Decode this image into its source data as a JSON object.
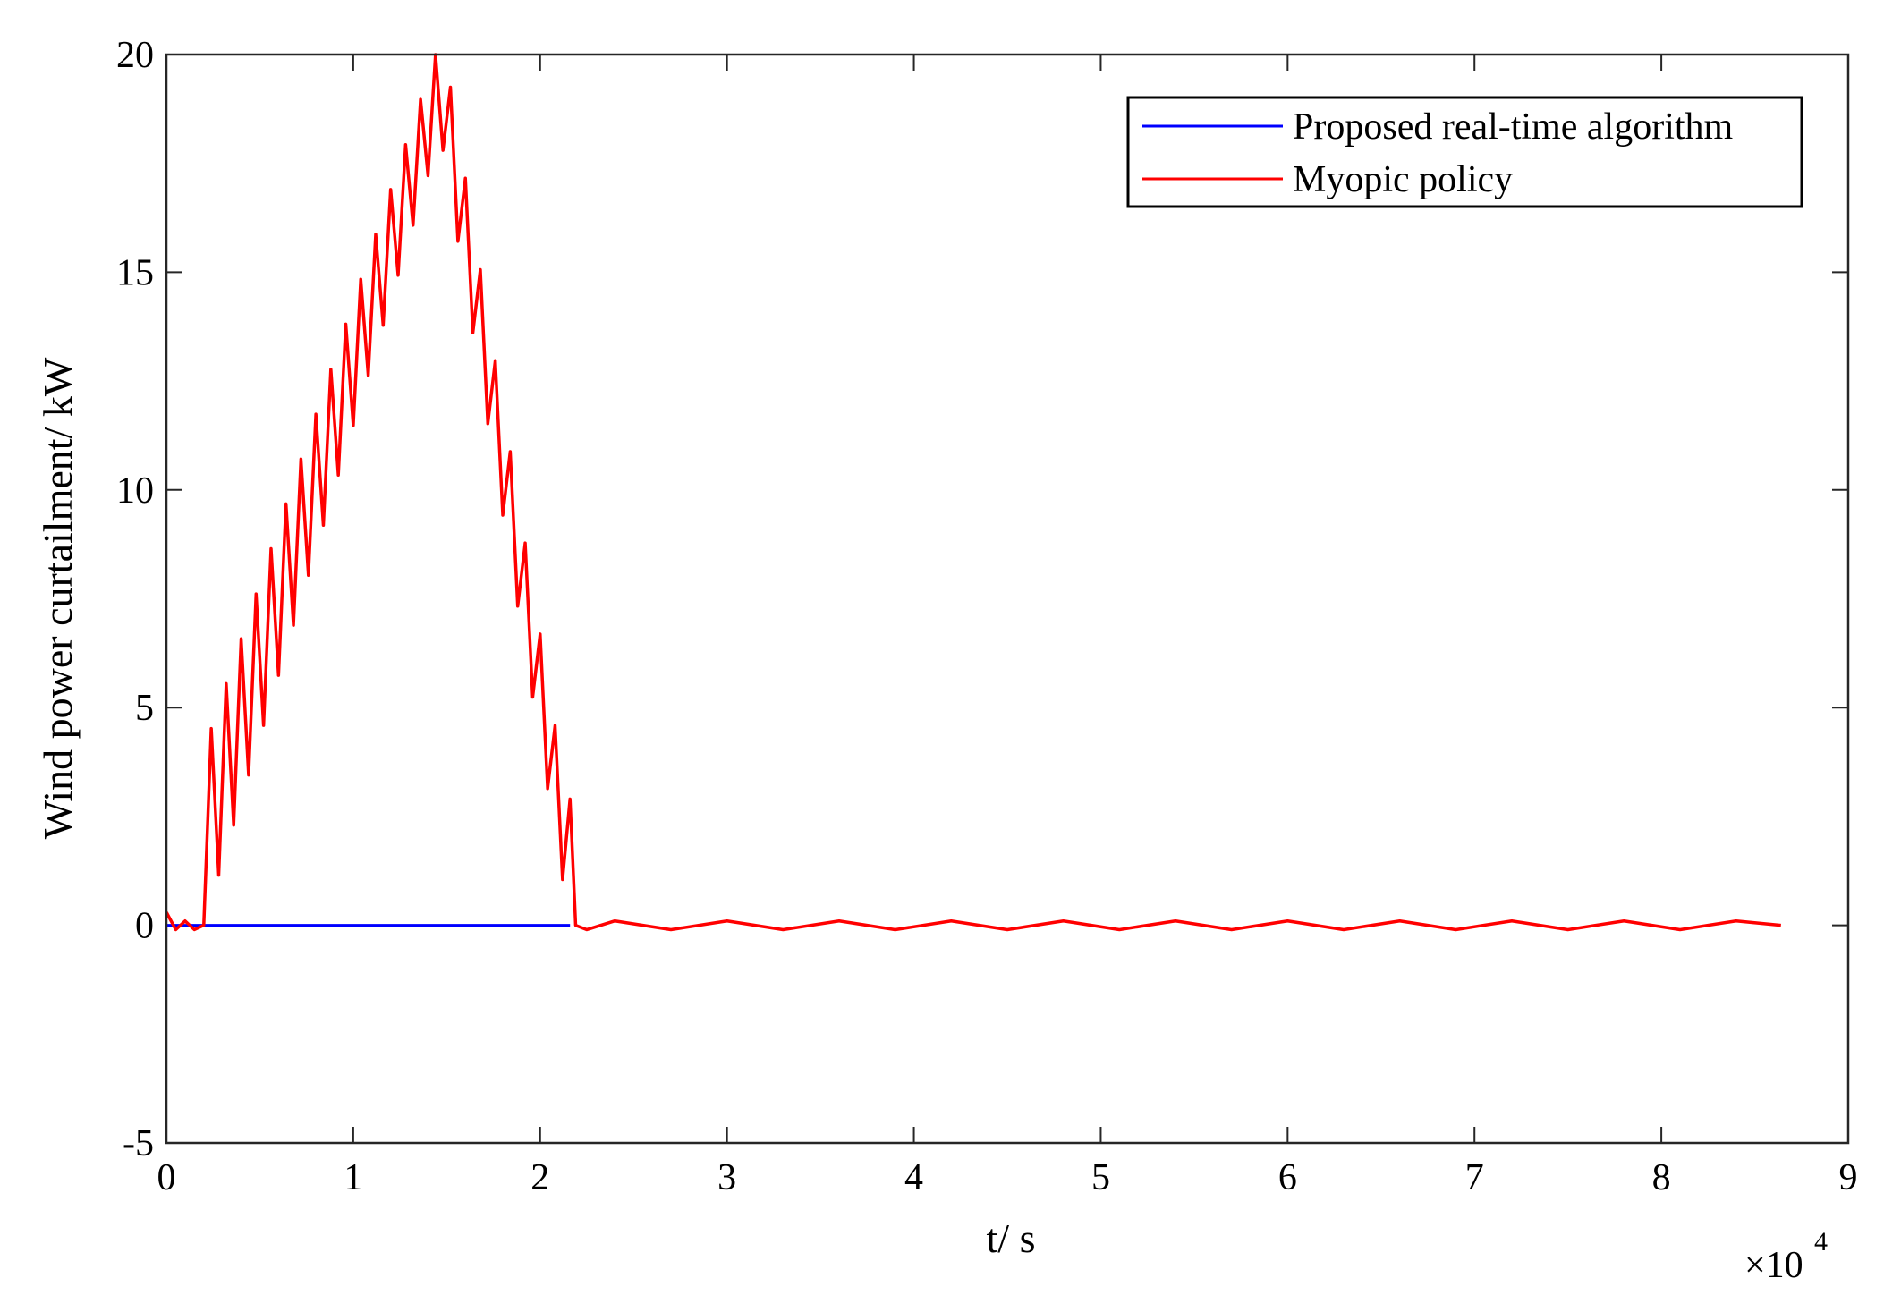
{
  "chart_data": {
    "type": "line",
    "xlabel": "t/ s",
    "ylabel": "Wind power curtailment/ kW",
    "x_multiplier": {
      "base": "×10",
      "exponent": "4"
    },
    "xlim": [
      0,
      90000
    ],
    "ylim": [
      -5,
      20
    ],
    "xticks": [
      0,
      {
        "value": 10000,
        "label": "1"
      },
      {
        "value": 20000,
        "label": "2"
      },
      {
        "value": 30000,
        "label": "3"
      },
      {
        "value": 40000,
        "label": "4"
      },
      {
        "value": 50000,
        "label": "5"
      },
      {
        "value": 60000,
        "label": "6"
      },
      {
        "value": 70000,
        "label": "7"
      },
      {
        "value": 80000,
        "label": "8"
      },
      {
        "value": 90000,
        "label": "9"
      }
    ],
    "yticks": [
      -5,
      0,
      5,
      10,
      15,
      20
    ],
    "legend": "upper right",
    "series": [
      {
        "name": "Proposed real-time algorithm",
        "color": "#0000ff",
        "x": [
          0,
          21600
        ],
        "values": [
          0,
          0
        ]
      },
      {
        "name": "Myopic policy",
        "color": "#ff0000",
        "x": [
          0,
          500,
          1000,
          1500,
          2000,
          2400,
          2800,
          3200,
          3600,
          4000,
          4400,
          4800,
          5200,
          5600,
          6000,
          6400,
          6800,
          7200,
          7600,
          8000,
          8400,
          8800,
          9200,
          9600,
          10000,
          10400,
          10800,
          11200,
          11600,
          12000,
          12400,
          12800,
          13200,
          13600,
          14000,
          14400,
          14800,
          15200,
          15600,
          16000,
          16400,
          16800,
          17200,
          17600,
          18000,
          18400,
          18800,
          19200,
          19600,
          20000,
          20400,
          20800,
          21200,
          21600,
          21900,
          22500,
          24000,
          27000,
          30000,
          33000,
          36000,
          39000,
          42000,
          45000,
          48000,
          51000,
          54000,
          57000,
          60000,
          63000,
          66000,
          69000,
          72000,
          75000,
          78000,
          81000,
          84000,
          86400
        ],
        "values": [
          0.3,
          -0.1,
          0.1,
          -0.1,
          0,
          4.52,
          1.15,
          5.55,
          2.3,
          6.58,
          3.45,
          7.61,
          4.59,
          8.65,
          5.74,
          9.68,
          6.89,
          10.71,
          8.04,
          11.74,
          9.19,
          12.77,
          10.34,
          13.81,
          11.48,
          14.84,
          12.63,
          15.87,
          13.78,
          16.9,
          14.93,
          17.93,
          16.08,
          18.97,
          17.22,
          20.0,
          17.8,
          19.25,
          15.71,
          17.16,
          13.61,
          15.06,
          11.52,
          12.97,
          9.42,
          10.88,
          7.33,
          8.78,
          5.24,
          6.69,
          3.14,
          4.59,
          1.05,
          2.9,
          0,
          -0.1,
          0.1,
          -0.1,
          0.1,
          -0.1,
          0.1,
          -0.1,
          0.1,
          -0.1,
          0.1,
          -0.1,
          0.1,
          -0.1,
          0.1,
          -0.1,
          0.1,
          -0.1,
          0.1,
          -0.1,
          0.1,
          -0.1,
          0.1,
          0
        ]
      }
    ]
  }
}
